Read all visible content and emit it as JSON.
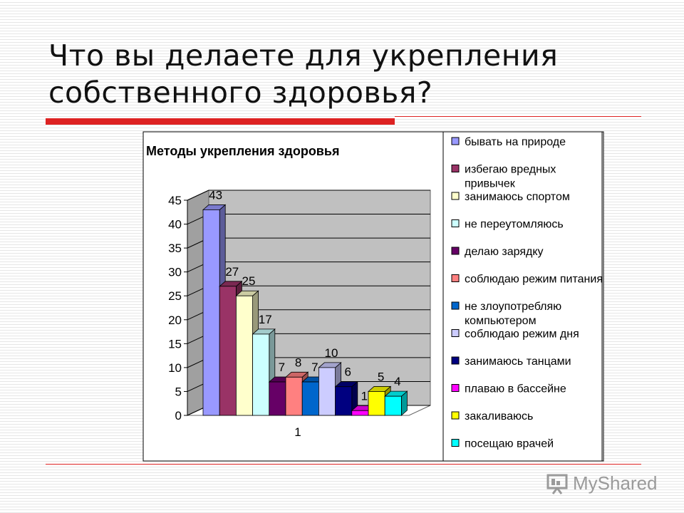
{
  "slide": {
    "title_line1": "Что вы делаете для укрепления",
    "title_line2": "собственного здоровья?"
  },
  "watermark": {
    "text": "MyShared"
  },
  "chart_data": {
    "type": "bar",
    "title": "Методы укрепления здоровья",
    "categories": [
      "1"
    ],
    "ylim": [
      0,
      45
    ],
    "yticks": [
      0,
      5,
      10,
      15,
      20,
      25,
      30,
      35,
      40,
      45
    ],
    "grid": true,
    "legend_position": "right",
    "series": [
      {
        "name": "бывать на природе",
        "values": [
          43
        ],
        "color": "#9999ff"
      },
      {
        "name": "избегаю вредных привычек",
        "values": [
          27
        ],
        "color": "#993366"
      },
      {
        "name": "занимаюсь спортом",
        "values": [
          25
        ],
        "color": "#ffffcc"
      },
      {
        "name": "не переутомляюсь",
        "values": [
          17
        ],
        "color": "#ccffff"
      },
      {
        "name": "делаю зарядку",
        "values": [
          7
        ],
        "color": "#660066"
      },
      {
        "name": "соблюдаю режим питания",
        "values": [
          8
        ],
        "color": "#ff8080"
      },
      {
        "name": "не злоупотребляю компьютером",
        "values": [
          7
        ],
        "color": "#0066cc"
      },
      {
        "name": "соблюдаю режим дня",
        "values": [
          10
        ],
        "color": "#ccccff"
      },
      {
        "name": "занимаюсь танцами",
        "values": [
          6
        ],
        "color": "#000080"
      },
      {
        "name": "плаваю в бассейне",
        "values": [
          1
        ],
        "color": "#ff00ff"
      },
      {
        "name": "закаливаюсь",
        "values": [
          5
        ],
        "color": "#ffff00"
      },
      {
        "name": "посещаю врачей",
        "values": [
          4
        ],
        "color": "#00ffff"
      }
    ]
  }
}
